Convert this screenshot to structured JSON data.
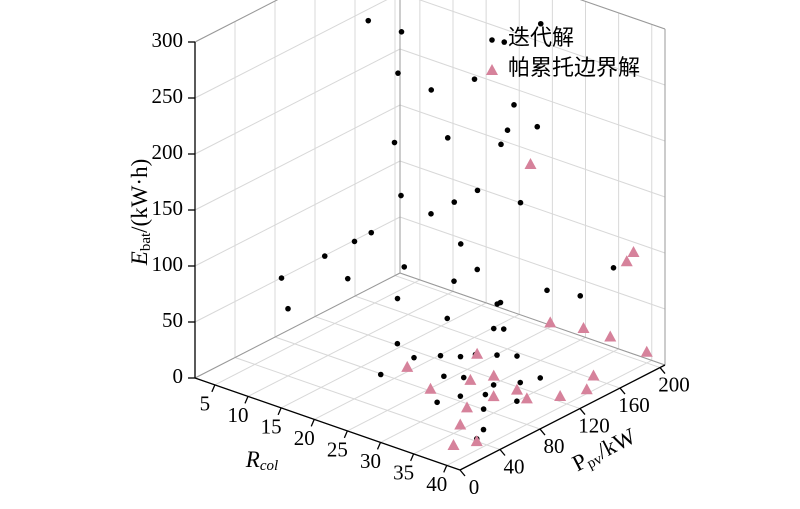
{
  "chart_data": {
    "type": "scatter3d",
    "xlabel": [
      "R",
      "col"
    ],
    "ylabel": [
      "P",
      "pv",
      "/kW"
    ],
    "zlabel": [
      "E",
      "bat",
      "/(kW·h)"
    ],
    "xlim": [
      2,
      42
    ],
    "xticks": [
      5,
      10,
      15,
      20,
      25,
      30,
      35,
      40
    ],
    "ylim": [
      0,
      205
    ],
    "yticks": [
      0,
      40,
      80,
      120,
      160,
      200
    ],
    "zlim": [
      0,
      300
    ],
    "zticks": [
      0,
      50,
      100,
      150,
      200,
      250,
      300
    ],
    "grid": true,
    "legend": "upper right",
    "series": [
      {
        "name": "迭代解",
        "color": "#000000",
        "marker": "circle",
        "x": [
          3,
          4,
          6,
          8,
          10,
          12,
          14,
          16,
          18,
          20,
          6,
          8,
          10,
          12,
          14,
          16,
          18,
          20,
          22,
          24,
          22,
          26,
          28,
          30,
          28,
          30,
          32,
          26,
          24,
          30,
          32,
          34,
          33,
          35,
          31,
          34,
          36,
          30,
          29,
          33,
          35,
          32,
          28,
          36,
          37,
          30,
          26,
          22,
          20,
          24,
          34,
          36,
          38,
          28,
          18,
          14,
          10,
          38,
          25,
          40
        ],
        "y": [
          195,
          160,
          180,
          200,
          150,
          170,
          120,
          160,
          100,
          140,
          60,
          90,
          40,
          110,
          80,
          60,
          130,
          90,
          70,
          120,
          150,
          100,
          80,
          60,
          110,
          140,
          100,
          60,
          40,
          80,
          70,
          90,
          60,
          80,
          50,
          110,
          100,
          95,
          70,
          85,
          70,
          110,
          130,
          120,
          90,
          120,
          160,
          180,
          190,
          200,
          140,
          160,
          180,
          170,
          200,
          200,
          200,
          50,
          50,
          30
        ],
        "z": [
          265,
          250,
          235,
          290,
          220,
          200,
          180,
          170,
          150,
          130,
          70,
          80,
          60,
          100,
          110,
          90,
          120,
          95,
          80,
          110,
          140,
          90,
          70,
          50,
          100,
          150,
          60,
          40,
          30,
          40,
          30,
          45,
          20,
          25,
          15,
          35,
          20,
          35,
          25,
          10,
          8,
          55,
          60,
          15,
          10,
          70,
          220,
          180,
          250,
          270,
          80,
          70,
          90,
          200,
          150,
          200,
          280,
          5,
          55,
          10
        ]
      },
      {
        "name": "帕累托边界解",
        "color": "#d6829b",
        "marker": "triangle",
        "x": [
          38,
          40,
          36,
          34,
          35,
          37,
          39,
          40,
          38,
          36,
          33,
          31,
          30,
          40,
          38,
          30,
          36,
          38,
          34,
          32,
          40,
          28
        ],
        "y": [
          20,
          30,
          40,
          60,
          80,
          100,
          120,
          140,
          160,
          190,
          70,
          90,
          50,
          180,
          200,
          150,
          130,
          150,
          110,
          100,
          200,
          40
        ],
        "z": [
          5,
          8,
          10,
          12,
          15,
          8,
          5,
          4,
          3,
          20,
          30,
          40,
          25,
          100,
          95,
          180,
          60,
          50,
          5,
          18,
          10,
          45
        ]
      }
    ]
  }
}
